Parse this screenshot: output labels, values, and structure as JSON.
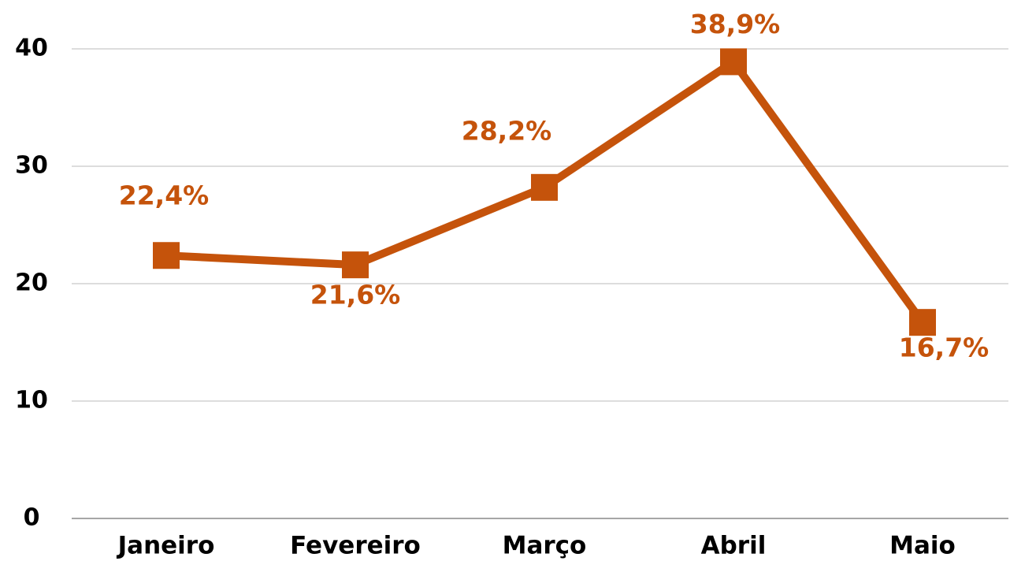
{
  "chart_data": {
    "type": "line",
    "categories": [
      "Janeiro",
      "Fevereiro",
      "Março",
      "Abril",
      "Maio"
    ],
    "values": [
      22.4,
      21.6,
      28.2,
      38.9,
      16.7
    ],
    "value_labels": [
      "22,4%",
      "21,6%",
      "28,2%",
      "38,9%",
      "16,7%"
    ],
    "color": "#c5530b",
    "ylim": [
      0,
      40
    ],
    "yticks": [
      0,
      10,
      20,
      30,
      40
    ],
    "grid": true
  }
}
